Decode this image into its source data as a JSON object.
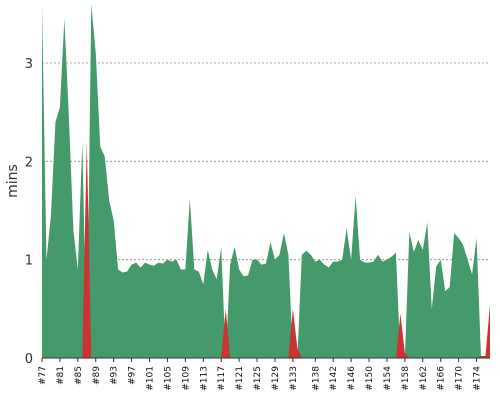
{
  "chart_data": {
    "type": "area",
    "ylabel": "mins",
    "ylim": [
      0,
      3.6
    ],
    "yticks": [
      0,
      1,
      2,
      3
    ],
    "grid": true,
    "x": [
      "#77",
      "#78",
      "#79",
      "#80",
      "#81",
      "#82",
      "#83",
      "#84",
      "#85",
      "#86",
      "#87",
      "#88",
      "#89",
      "#90",
      "#91",
      "#92",
      "#93",
      "#94",
      "#95",
      "#96",
      "#97",
      "#98",
      "#99",
      "#100",
      "#101",
      "#102",
      "#103",
      "#104",
      "#105",
      "#106",
      "#107",
      "#108",
      "#109",
      "#110",
      "#111",
      "#112",
      "#113",
      "#114",
      "#115",
      "#116",
      "#117",
      "#118",
      "#119",
      "#120",
      "#121",
      "#122",
      "#123",
      "#124",
      "#125",
      "#126",
      "#127",
      "#128",
      "#129",
      "#130",
      "#131",
      "#132",
      "#133",
      "#134",
      "#135",
      "#136",
      "#137",
      "#138",
      "#139",
      "#140",
      "#141",
      "#142",
      "#143",
      "#144",
      "#145",
      "#146",
      "#147",
      "#148",
      "#149",
      "#150",
      "#151",
      "#152",
      "#153",
      "#154",
      "#155",
      "#156",
      "#157",
      "#158",
      "#159",
      "#160",
      "#161",
      "#162",
      "#163",
      "#164",
      "#165",
      "#166",
      "#167",
      "#168",
      "#169",
      "#170",
      "#171",
      "#172",
      "#173",
      "#174",
      "#175",
      "#176",
      "#177"
    ],
    "xtick_labels": [
      "#77",
      "#81",
      "#85",
      "#89",
      "#93",
      "#97",
      "#101",
      "#105",
      "#109",
      "#113",
      "#117",
      "#121",
      "#125",
      "#129",
      "#133",
      "#138",
      "#142",
      "#146",
      "#150",
      "#154",
      "#158",
      "#162",
      "#166",
      "#170",
      "#174"
    ],
    "series": [
      {
        "color": "#449a6a",
        "values": [
          3.65,
          1.0,
          1.45,
          2.4,
          2.55,
          3.45,
          2.45,
          1.3,
          0.9,
          2.2,
          0.0,
          3.65,
          3.1,
          2.15,
          2.05,
          1.6,
          1.4,
          0.9,
          0.87,
          0.88,
          0.95,
          0.97,
          0.92,
          0.97,
          0.95,
          0.94,
          0.97,
          0.96,
          1.0,
          0.98,
          1.0,
          0.9,
          0.9,
          1.62,
          0.9,
          0.88,
          0.75,
          1.1,
          0.9,
          0.8,
          1.13,
          0.0,
          0.95,
          1.13,
          0.9,
          0.83,
          0.84,
          1.0,
          1.0,
          0.95,
          0.96,
          1.18,
          1.0,
          1.05,
          1.27,
          1.05,
          0.0,
          0.0,
          1.05,
          1.09,
          1.05,
          0.98,
          1.0,
          0.95,
          0.92,
          0.98,
          0.98,
          1.0,
          1.32,
          1.0,
          1.65,
          1.0,
          0.97,
          0.97,
          0.98,
          1.05,
          0.98,
          1.0,
          1.03,
          1.07,
          0.0,
          0.0,
          1.28,
          1.08,
          1.2,
          1.1,
          1.38,
          0.5,
          0.93,
          1.0,
          0.68,
          0.72,
          1.27,
          1.22,
          1.15,
          1.0,
          0.85,
          1.22,
          0.0,
          0.0,
          0.0
        ]
      },
      {
        "color": "#cc3333",
        "values": [
          0,
          0,
          0,
          0,
          0,
          0,
          0,
          0,
          0,
          0,
          2.2,
          0,
          0,
          0,
          0,
          0,
          0,
          0,
          0,
          0,
          0,
          0,
          0,
          0,
          0,
          0,
          0,
          0,
          0,
          0,
          0,
          0,
          0,
          0,
          0,
          0,
          0,
          0,
          0,
          0,
          0.0,
          0.5,
          0,
          0,
          0,
          0,
          0,
          0,
          0,
          0,
          0,
          0,
          0,
          0,
          0,
          0,
          0.5,
          0.1,
          0,
          0,
          0,
          0,
          0,
          0,
          0,
          0,
          0,
          0,
          0,
          0,
          0,
          0,
          0,
          0,
          0,
          0,
          0,
          0,
          0,
          0,
          0.45,
          0.05,
          0,
          0,
          0,
          0,
          0,
          0,
          0,
          0,
          0,
          0,
          0,
          0,
          0,
          0,
          0,
          0,
          0.02,
          0.02,
          0.55
        ]
      }
    ]
  }
}
